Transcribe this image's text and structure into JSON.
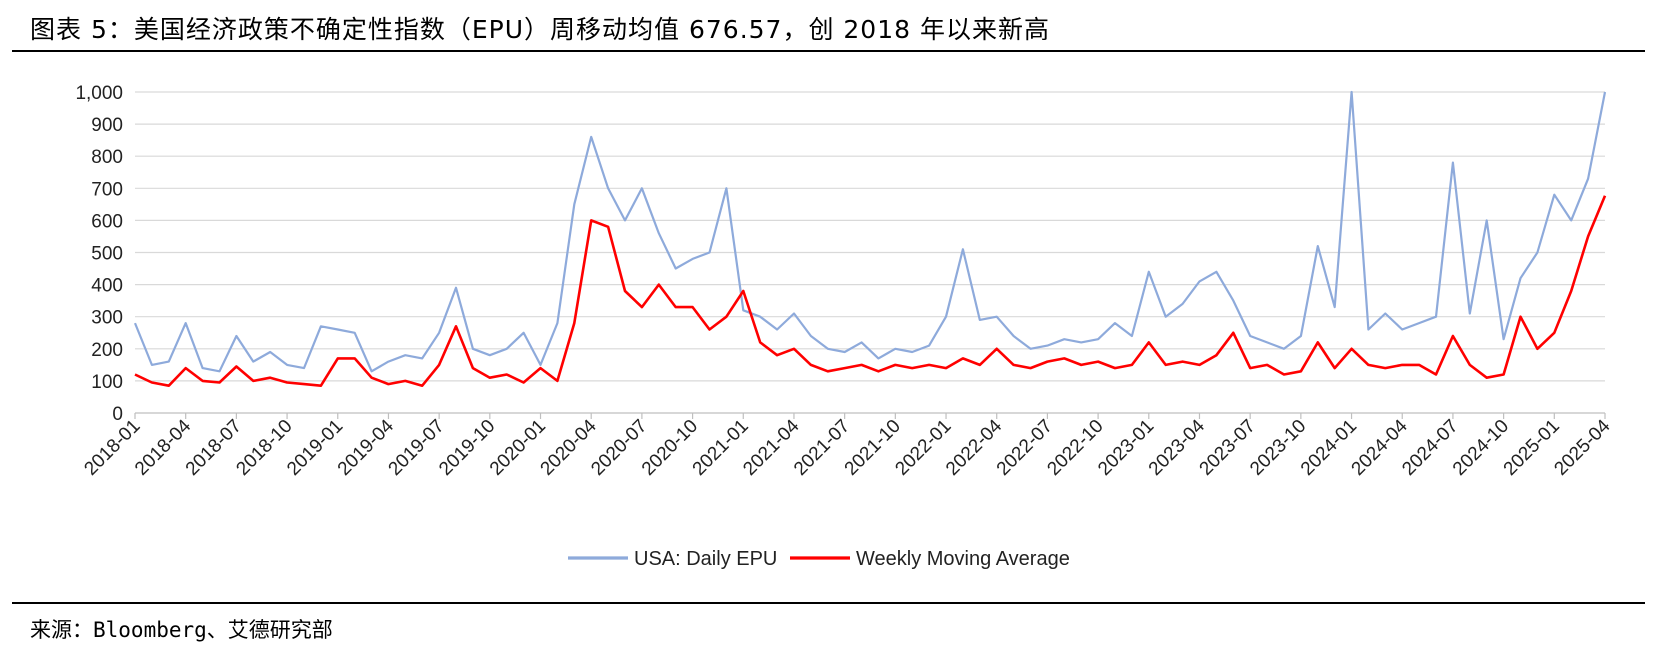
{
  "header": {
    "title": "图表 5：美国经济政策不确定性指数（EPU）周移动均值 676.57，创 2018 年以来新高"
  },
  "footer": {
    "source": "来源：Bloomberg、艾德研究部"
  },
  "colors": {
    "daily": "#8eaadb",
    "weekly": "#ff0000",
    "grid": "#d9d9d9"
  },
  "chart_data": {
    "type": "line",
    "ylim": [
      0,
      1000
    ],
    "yticks": [
      "0",
      "100",
      "200",
      "300",
      "400",
      "500",
      "600",
      "700",
      "800",
      "900",
      "1,000"
    ],
    "xticks": [
      "2018-01",
      "2018-04",
      "2018-07",
      "2018-10",
      "2019-01",
      "2019-04",
      "2019-07",
      "2019-10",
      "2020-01",
      "2020-04",
      "2020-07",
      "2020-10",
      "2021-01",
      "2021-04",
      "2021-07",
      "2021-10",
      "2022-01",
      "2022-04",
      "2022-07",
      "2022-10",
      "2023-01",
      "2023-04",
      "2023-07",
      "2023-10",
      "2024-01",
      "2024-04",
      "2024-07",
      "2024-10",
      "2025-01",
      "2025-04"
    ],
    "grid": true,
    "legend": "bottom",
    "series": [
      {
        "name": "USA: Daily EPU",
        "x": [
          "2018-01",
          "2018-02",
          "2018-03",
          "2018-04",
          "2018-05",
          "2018-06",
          "2018-07",
          "2018-08",
          "2018-09",
          "2018-10",
          "2018-11",
          "2018-12",
          "2019-01",
          "2019-02",
          "2019-03",
          "2019-04",
          "2019-05",
          "2019-06",
          "2019-07",
          "2019-08",
          "2019-09",
          "2019-10",
          "2019-11",
          "2019-12",
          "2020-01",
          "2020-02",
          "2020-03",
          "2020-04",
          "2020-05",
          "2020-06",
          "2020-07",
          "2020-08",
          "2020-09",
          "2020-10",
          "2020-11",
          "2020-12",
          "2021-01",
          "2021-02",
          "2021-03",
          "2021-04",
          "2021-05",
          "2021-06",
          "2021-07",
          "2021-08",
          "2021-09",
          "2021-10",
          "2021-11",
          "2021-12",
          "2022-01",
          "2022-02",
          "2022-03",
          "2022-04",
          "2022-05",
          "2022-06",
          "2022-07",
          "2022-08",
          "2022-09",
          "2022-10",
          "2022-11",
          "2022-12",
          "2023-01",
          "2023-02",
          "2023-03",
          "2023-04",
          "2023-05",
          "2023-06",
          "2023-07",
          "2023-08",
          "2023-09",
          "2023-10",
          "2023-11",
          "2023-12",
          "2024-01",
          "2024-02",
          "2024-03",
          "2024-04",
          "2024-05",
          "2024-06",
          "2024-07",
          "2024-08",
          "2024-09",
          "2024-10",
          "2024-11",
          "2024-12",
          "2025-01",
          "2025-02",
          "2025-03",
          "2025-04"
        ],
        "values": [
          280,
          150,
          160,
          280,
          140,
          130,
          240,
          160,
          190,
          150,
          140,
          270,
          260,
          250,
          130,
          160,
          180,
          170,
          250,
          390,
          200,
          180,
          200,
          250,
          150,
          280,
          650,
          860,
          700,
          600,
          700,
          560,
          450,
          480,
          500,
          700,
          320,
          300,
          260,
          310,
          240,
          200,
          190,
          220,
          170,
          200,
          190,
          210,
          300,
          510,
          290,
          300,
          240,
          200,
          210,
          230,
          220,
          230,
          280,
          240,
          440,
          300,
          340,
          410,
          440,
          350,
          240,
          220,
          200,
          240,
          520,
          330,
          1000,
          260,
          310,
          260,
          280,
          300,
          780,
          310,
          600,
          230,
          420,
          500,
          680,
          600,
          730,
          1000
        ]
      },
      {
        "name": "Weekly Moving Average",
        "x": [
          "2018-01",
          "2018-02",
          "2018-03",
          "2018-04",
          "2018-05",
          "2018-06",
          "2018-07",
          "2018-08",
          "2018-09",
          "2018-10",
          "2018-11",
          "2018-12",
          "2019-01",
          "2019-02",
          "2019-03",
          "2019-04",
          "2019-05",
          "2019-06",
          "2019-07",
          "2019-08",
          "2019-09",
          "2019-10",
          "2019-11",
          "2019-12",
          "2020-01",
          "2020-02",
          "2020-03",
          "2020-04",
          "2020-05",
          "2020-06",
          "2020-07",
          "2020-08",
          "2020-09",
          "2020-10",
          "2020-11",
          "2020-12",
          "2021-01",
          "2021-02",
          "2021-03",
          "2021-04",
          "2021-05",
          "2021-06",
          "2021-07",
          "2021-08",
          "2021-09",
          "2021-10",
          "2021-11",
          "2021-12",
          "2022-01",
          "2022-02",
          "2022-03",
          "2022-04",
          "2022-05",
          "2022-06",
          "2022-07",
          "2022-08",
          "2022-09",
          "2022-10",
          "2022-11",
          "2022-12",
          "2023-01",
          "2023-02",
          "2023-03",
          "2023-04",
          "2023-05",
          "2023-06",
          "2023-07",
          "2023-08",
          "2023-09",
          "2023-10",
          "2023-11",
          "2023-12",
          "2024-01",
          "2024-02",
          "2024-03",
          "2024-04",
          "2024-05",
          "2024-06",
          "2024-07",
          "2024-08",
          "2024-09",
          "2024-10",
          "2024-11",
          "2024-12",
          "2025-01",
          "2025-02",
          "2025-03",
          "2025-04"
        ],
        "values": [
          120,
          95,
          85,
          140,
          100,
          95,
          145,
          100,
          110,
          95,
          90,
          85,
          170,
          170,
          110,
          90,
          100,
          85,
          150,
          270,
          140,
          110,
          120,
          95,
          140,
          100,
          280,
          600,
          580,
          380,
          330,
          400,
          330,
          330,
          260,
          300,
          380,
          220,
          180,
          200,
          150,
          130,
          140,
          150,
          130,
          150,
          140,
          150,
          140,
          170,
          150,
          200,
          150,
          140,
          160,
          170,
          150,
          160,
          140,
          150,
          220,
          150,
          160,
          150,
          180,
          250,
          140,
          150,
          120,
          130,
          220,
          140,
          200,
          150,
          140,
          150,
          150,
          120,
          240,
          150,
          110,
          120,
          300,
          200,
          250,
          380,
          550,
          676.57
        ]
      }
    ]
  }
}
